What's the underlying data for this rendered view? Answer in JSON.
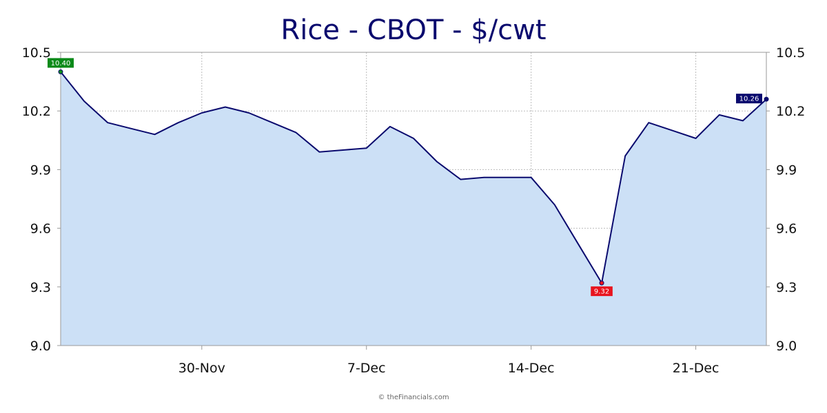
{
  "chart_data": {
    "type": "area",
    "title": "Rice - CBOT - $/cwt",
    "xlabel": "",
    "ylabel": "",
    "ylim": [
      9.0,
      10.5
    ],
    "yticks": [
      "9.0",
      "9.3",
      "9.6",
      "9.9",
      "10.2",
      "10.5"
    ],
    "xtick_labels": [
      {
        "label": "30-Nov",
        "index": 6
      },
      {
        "label": "7-Dec",
        "index": 13
      },
      {
        "label": "14-Dec",
        "index": 20
      },
      {
        "label": "21-Dec",
        "index": 27
      }
    ],
    "x_index_range": [
      0,
      30
    ],
    "values": [
      10.4,
      10.25,
      10.14,
      10.11,
      10.08,
      10.14,
      10.19,
      10.22,
      10.19,
      10.14,
      10.09,
      9.99,
      10.0,
      10.01,
      10.12,
      10.06,
      9.94,
      9.85,
      9.86,
      9.86,
      9.86,
      9.72,
      9.52,
      9.32,
      9.97,
      10.14,
      10.1,
      10.06,
      10.18,
      10.15,
      10.26
    ],
    "annotations": [
      {
        "label": "10.40",
        "index": 0,
        "value": 10.4,
        "color": "#0b8a1a"
      },
      {
        "label": "9.32",
        "index": 23,
        "value": 9.32,
        "color": "#e8141e"
      },
      {
        "label": "10.26",
        "index": 30,
        "value": 10.26,
        "color": "#0a0a6e"
      }
    ],
    "grid": true,
    "colors": {
      "line": "#0a0a6e",
      "fill": "#cce0f6",
      "grid": "#bbbbbb",
      "axis": "#999999"
    }
  },
  "credit": "© theFinancials.com"
}
